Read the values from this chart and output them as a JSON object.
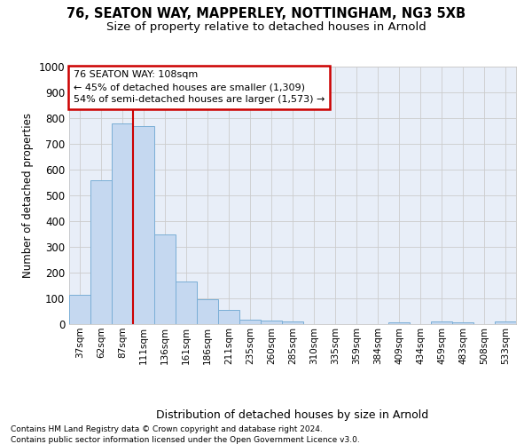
{
  "title1": "76, SEATON WAY, MAPPERLEY, NOTTINGHAM, NG3 5XB",
  "title2": "Size of property relative to detached houses in Arnold",
  "xlabel": "Distribution of detached houses by size in Arnold",
  "ylabel": "Number of detached properties",
  "categories": [
    "37sqm",
    "62sqm",
    "87sqm",
    "111sqm",
    "136sqm",
    "161sqm",
    "186sqm",
    "211sqm",
    "235sqm",
    "260sqm",
    "285sqm",
    "310sqm",
    "335sqm",
    "359sqm",
    "384sqm",
    "409sqm",
    "434sqm",
    "459sqm",
    "483sqm",
    "508sqm",
    "533sqm"
  ],
  "values": [
    115,
    560,
    780,
    770,
    348,
    165,
    97,
    55,
    18,
    13,
    10,
    0,
    0,
    0,
    0,
    8,
    0,
    12,
    7,
    0,
    9
  ],
  "bar_color": "#c5d8f0",
  "bar_edge_color": "#7aaed6",
  "vline_x": 2.5,
  "vline_color": "#cc0000",
  "annotation_title": "76 SEATON WAY: 108sqm",
  "annotation_line1": "← 45% of detached houses are smaller (1,309)",
  "annotation_line2": "54% of semi-detached houses are larger (1,573) →",
  "annotation_box_facecolor": "#ffffff",
  "annotation_box_edgecolor": "#cc0000",
  "ylim": [
    0,
    1000
  ],
  "yticks": [
    0,
    100,
    200,
    300,
    400,
    500,
    600,
    700,
    800,
    900,
    1000
  ],
  "grid_color": "#cccccc",
  "bg_color": "#e8eef8",
  "footnote1": "Contains HM Land Registry data © Crown copyright and database right 2024.",
  "footnote2": "Contains public sector information licensed under the Open Government Licence v3.0."
}
